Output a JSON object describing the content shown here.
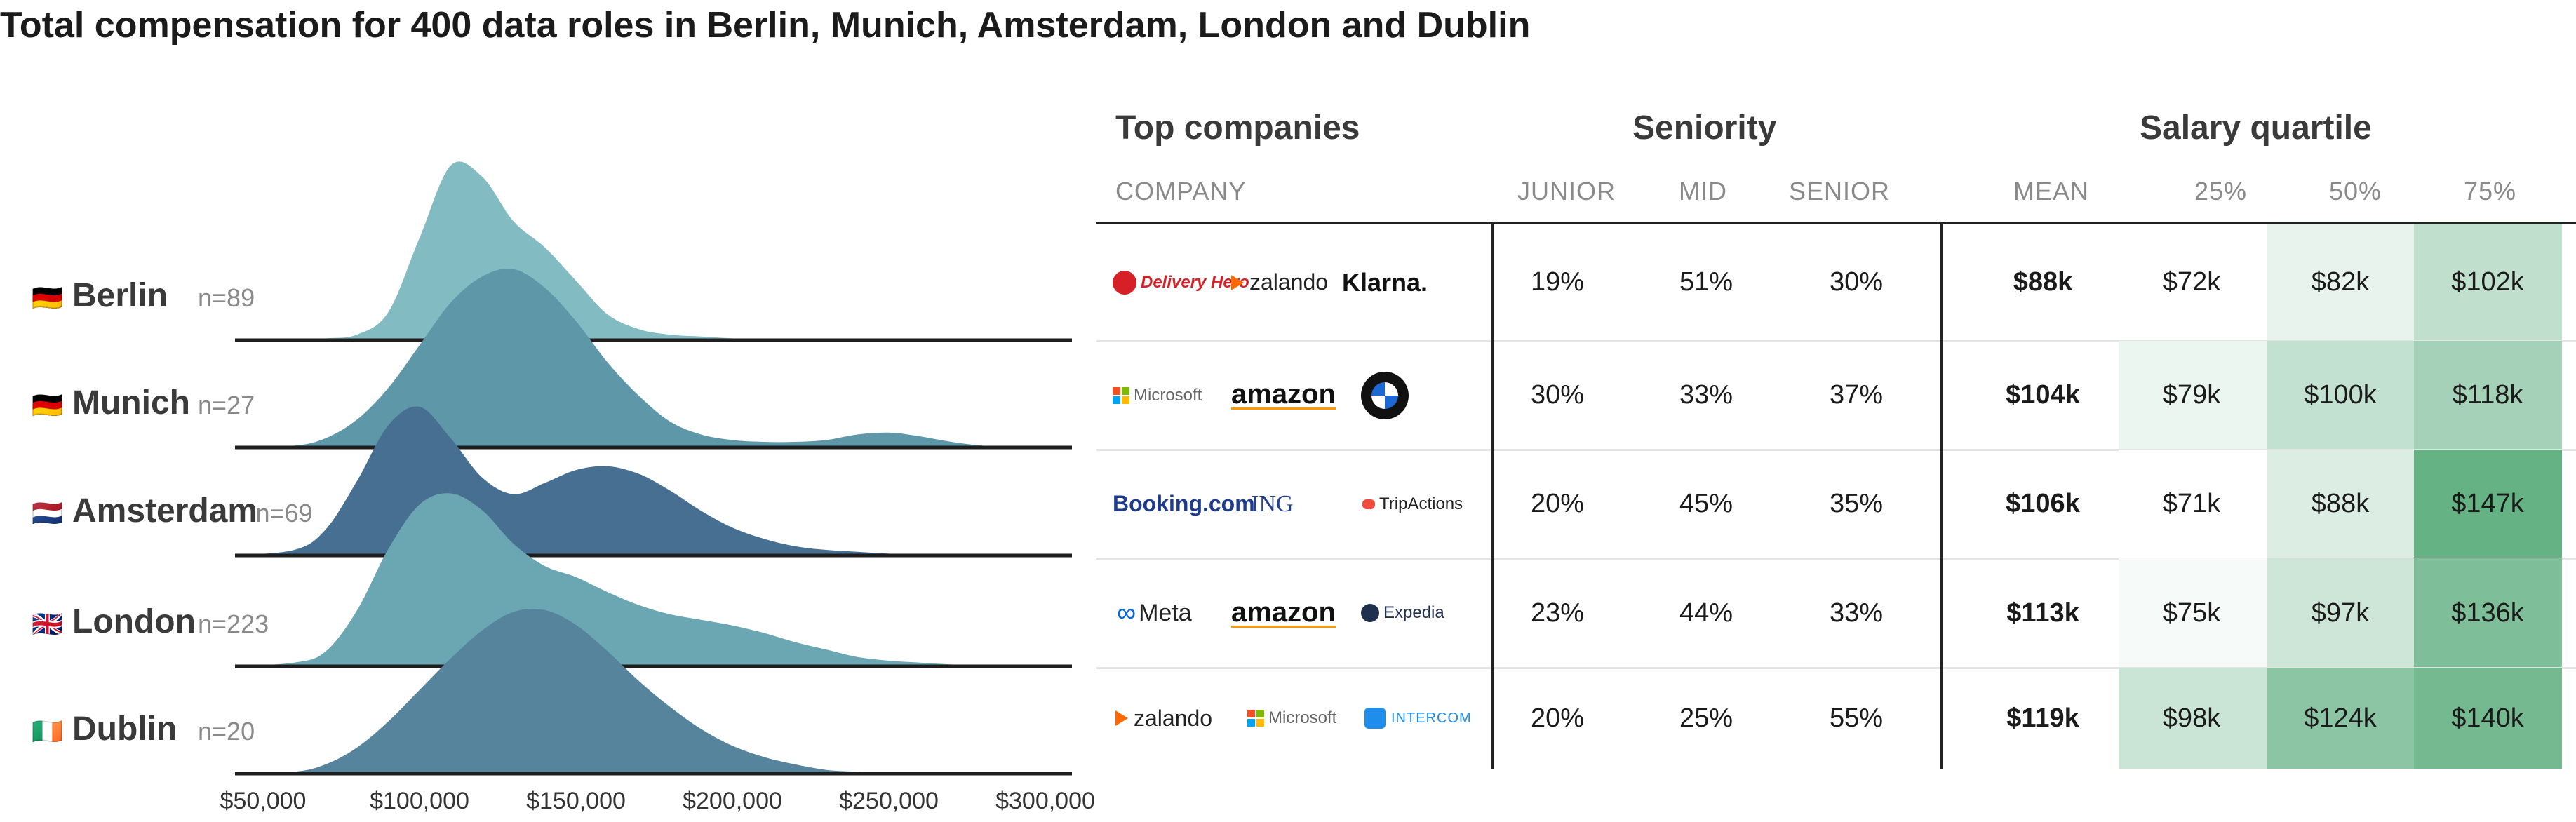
{
  "title": "Total compensation for 400 data roles in Berlin, Munich, Amsterdam, London and Dublin",
  "colors": {
    "berlin": "#82bcc2",
    "munich": "#5e98a8",
    "amsterdam": "#476f91",
    "london": "#6aa7b3",
    "dublin": "#55849c",
    "heat_low": "#ffffff",
    "heat_high": "#62b082"
  },
  "chart_data": [
    {
      "type": "area",
      "subtype": "ridgeline",
      "title": "",
      "xlabel": "",
      "ylabel": "",
      "x_ticks": [
        "$50,000",
        "$100,000",
        "$150,000",
        "$200,000",
        "$250,000",
        "$300,000"
      ],
      "xlim": [
        40000,
        310000
      ],
      "x": [
        40000,
        60000,
        70000,
        80000,
        90000,
        100000,
        110000,
        120000,
        130000,
        140000,
        150000,
        160000,
        170000,
        180000,
        190000,
        200000,
        210000,
        220000,
        230000,
        240000,
        250000,
        260000,
        270000,
        280000,
        290000,
        300000,
        310000
      ],
      "series": [
        {
          "name": "Berlin",
          "n": "n=89",
          "flag": "🇩🇪",
          "color": "#82bcc2",
          "values": [
            0,
            0,
            0.01,
            0.03,
            0.15,
            0.55,
            0.94,
            0.88,
            0.64,
            0.5,
            0.32,
            0.14,
            0.06,
            0.03,
            0.02,
            0.01,
            0,
            0,
            0,
            0,
            0,
            0,
            0,
            0,
            0,
            0,
            0
          ]
        },
        {
          "name": "Munich",
          "n": "n=27",
          "flag": "🇩🇪",
          "color": "#5e98a8",
          "values": [
            0,
            0.01,
            0.05,
            0.15,
            0.32,
            0.55,
            0.78,
            0.92,
            0.96,
            0.86,
            0.68,
            0.46,
            0.28,
            0.14,
            0.07,
            0.04,
            0.03,
            0.03,
            0.04,
            0.07,
            0.08,
            0.06,
            0.03,
            0.01,
            0,
            0,
            0
          ]
        },
        {
          "name": "Amsterdam",
          "n": "n=69",
          "flag": "🇳🇱",
          "color": "#476f91",
          "values": [
            0,
            0.03,
            0.14,
            0.4,
            0.7,
            0.8,
            0.63,
            0.42,
            0.33,
            0.39,
            0.46,
            0.48,
            0.44,
            0.35,
            0.24,
            0.15,
            0.09,
            0.05,
            0.03,
            0.02,
            0.01,
            0,
            0,
            0,
            0,
            0,
            0
          ]
        },
        {
          "name": "London",
          "n": "n=223",
          "flag": "🇬🇧",
          "color": "#6aa7b3",
          "values": [
            0,
            0.02,
            0.08,
            0.3,
            0.63,
            0.87,
            0.93,
            0.84,
            0.66,
            0.54,
            0.48,
            0.4,
            0.33,
            0.28,
            0.25,
            0.22,
            0.18,
            0.13,
            0.09,
            0.05,
            0.03,
            0.02,
            0.01,
            0,
            0,
            0,
            0
          ]
        },
        {
          "name": "Dublin",
          "n": "n=20",
          "flag": "🇮🇪",
          "color": "#55849c",
          "values": [
            0,
            0.01,
            0.05,
            0.14,
            0.28,
            0.45,
            0.62,
            0.77,
            0.87,
            0.88,
            0.8,
            0.66,
            0.5,
            0.36,
            0.24,
            0.15,
            0.09,
            0.05,
            0.02,
            0.01,
            0,
            0,
            0,
            0,
            0,
            0,
            0
          ]
        }
      ]
    },
    {
      "type": "table",
      "group_headers": [
        "Top companies",
        "Seniority",
        "Salary quartile"
      ],
      "columns": [
        "COMPANY",
        "JUNIOR",
        "MID",
        "SENIOR",
        "MEAN",
        "25%",
        "50%",
        "75%"
      ],
      "rows": [
        {
          "companies": [
            "Delivery Hero",
            "zalando",
            "Klarna."
          ],
          "junior": "19%",
          "mid": "51%",
          "senior": "30%",
          "mean": "$88k",
          "q25": "$72k",
          "q50": "$82k",
          "q75": "$102k",
          "heat": [
            0.0,
            0.15,
            0.4
          ]
        },
        {
          "companies": [
            "Microsoft",
            "amazon",
            "BMW"
          ],
          "junior": "30%",
          "mid": "33%",
          "senior": "37%",
          "mean": "$104k",
          "q25": "$79k",
          "q50": "$100k",
          "q75": "$118k",
          "heat": [
            0.12,
            0.38,
            0.58
          ]
        },
        {
          "companies": [
            "Booking.com",
            "ING",
            "TripActions"
          ],
          "junior": "20%",
          "mid": "45%",
          "senior": "35%",
          "mean": "$106k",
          "q25": "$71k",
          "q50": "$88k",
          "q75": "$147k",
          "heat": [
            0.0,
            0.22,
            0.98
          ]
        },
        {
          "companies": [
            "Meta",
            "amazon",
            "Expedia"
          ],
          "junior": "23%",
          "mid": "44%",
          "senior": "33%",
          "mean": "$113k",
          "q25": "$75k",
          "q50": "$97k",
          "q75": "$136k",
          "heat": [
            0.06,
            0.32,
            0.82
          ]
        },
        {
          "companies": [
            "zalando",
            "Microsoft",
            "INTERCOM"
          ],
          "junior": "20%",
          "mid": "25%",
          "senior": "55%",
          "mean": "$119k",
          "q25": "$98k",
          "q50": "$124k",
          "q75": "$140k",
          "heat": [
            0.34,
            0.74,
            0.88
          ]
        }
      ]
    }
  ]
}
